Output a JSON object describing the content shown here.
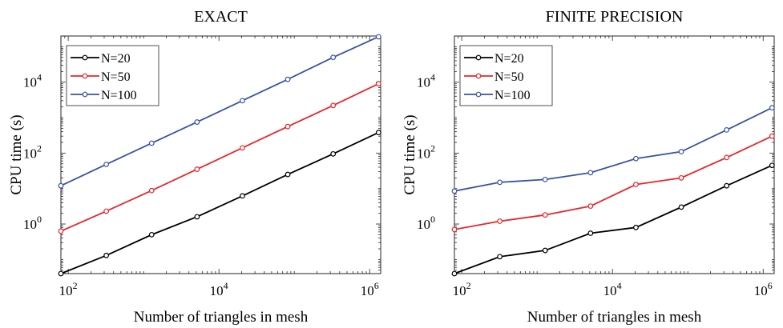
{
  "chart_data": [
    {
      "type": "line",
      "title": "EXACT",
      "xlabel": "Number of triangles in mesh",
      "ylabel": "CPU time (s)",
      "xscale": "log",
      "yscale": "log",
      "xlim": [
        80,
        1400000
      ],
      "ylim": [
        0.04,
        200000
      ],
      "x": [
        80,
        320,
        1280,
        5120,
        20480,
        81920,
        327680,
        1310720
      ],
      "xticks": [
        {
          "base": "10",
          "exp": "2"
        },
        {
          "base": "10",
          "exp": "4"
        },
        {
          "base": "10",
          "exp": "6"
        }
      ],
      "yticks": [
        {
          "base": "10",
          "exp": "0"
        },
        {
          "base": "10",
          "exp": "2"
        },
        {
          "base": "10",
          "exp": "4"
        }
      ],
      "grid": false,
      "legend": "top-left",
      "series": [
        {
          "name": "N=20",
          "color": "#000000",
          "values": [
            0.04,
            0.13,
            0.5,
            1.6,
            6.2,
            25,
            95,
            380
          ]
        },
        {
          "name": "N=50",
          "color": "#e8262b",
          "values": [
            0.63,
            2.3,
            8.8,
            35,
            140,
            560,
            2200,
            9000
          ]
        },
        {
          "name": "N=100",
          "color": "#3953a4",
          "values": [
            12,
            48,
            190,
            750,
            3000,
            12000,
            50000,
            190000
          ]
        }
      ]
    },
    {
      "type": "line",
      "title": "FINITE PRECISION",
      "xlabel": "Number of triangles in mesh",
      "ylabel": "CPU time (s)",
      "xscale": "log",
      "yscale": "log",
      "xlim": [
        80,
        1400000
      ],
      "ylim": [
        0.04,
        200000
      ],
      "x": [
        80,
        320,
        1280,
        5120,
        20480,
        81920,
        327680,
        1310720
      ],
      "xticks": [
        {
          "base": "10",
          "exp": "2"
        },
        {
          "base": "10",
          "exp": "4"
        },
        {
          "base": "10",
          "exp": "6"
        }
      ],
      "yticks": [
        {
          "base": "10",
          "exp": "0"
        },
        {
          "base": "10",
          "exp": "2"
        },
        {
          "base": "10",
          "exp": "4"
        }
      ],
      "grid": false,
      "legend": "top-left",
      "series": [
        {
          "name": "N=20",
          "color": "#000000",
          "values": [
            0.04,
            0.12,
            0.18,
            0.55,
            0.8,
            3,
            12,
            45
          ]
        },
        {
          "name": "N=50",
          "color": "#e8262b",
          "values": [
            0.7,
            1.2,
            1.8,
            3.2,
            13,
            20,
            75,
            300
          ]
        },
        {
          "name": "N=100",
          "color": "#3953a4",
          "values": [
            8.5,
            15,
            18,
            28,
            70,
            110,
            450,
            1900
          ]
        }
      ]
    }
  ]
}
